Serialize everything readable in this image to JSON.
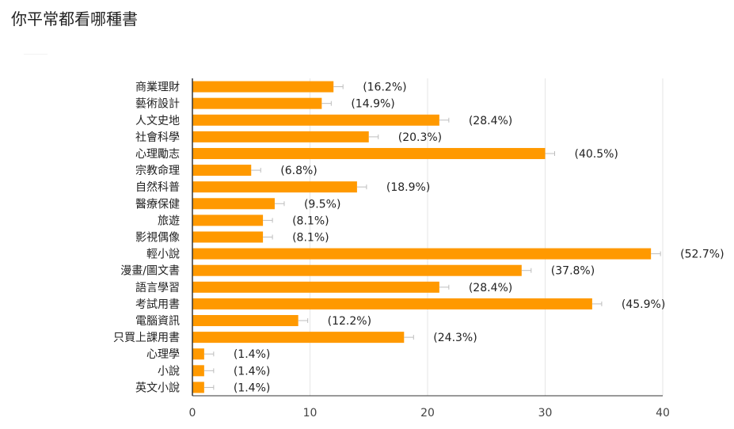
{
  "page_title": "你平常都看哪種書",
  "chart_data": {
    "type": "bar",
    "orientation": "horizontal",
    "title": "你平常都看哪種書",
    "categories": [
      "商業理財",
      "藝術設計",
      "人文史地",
      "社會科學",
      "心理勵志",
      "宗教命理",
      "自然科普",
      "醫療保健",
      "旅遊",
      "影視偶像",
      "輕小說",
      "漫畫/圖文書",
      "語言學習",
      "考試用書",
      "電腦資訊",
      "只買上課用書",
      "心理學",
      "小說",
      "英文小說"
    ],
    "values": [
      12,
      11,
      21,
      15,
      30,
      5,
      14,
      7,
      6,
      6,
      39,
      28,
      21,
      34,
      9,
      18,
      1,
      1,
      1
    ],
    "percent_labels": [
      "(16.2%)",
      "(14.9%)",
      "(28.4%)",
      "(20.3%)",
      "(40.5%)",
      "(6.8%)",
      "(18.9%)",
      "(9.5%)",
      "(8.1%)",
      "(8.1%)",
      "(52.7%)",
      "(37.8%)",
      "(28.4%)",
      "(45.9%)",
      "(12.2%)",
      "(24.3%)",
      "(1.4%)",
      "(1.4%)",
      "(1.4%)"
    ],
    "xlim": [
      0,
      40
    ],
    "xticks": [
      0,
      10,
      20,
      30,
      40
    ],
    "bar_color": "#ff9900",
    "grid": true
  }
}
